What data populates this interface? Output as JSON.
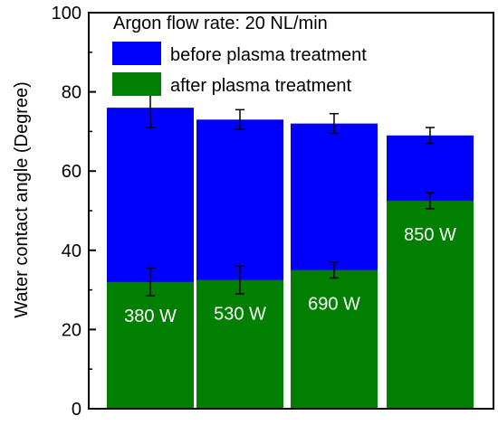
{
  "chart_data": {
    "type": "bar",
    "title": "",
    "xlabel": "",
    "ylabel": "Water contact angle (Degree)",
    "ylim": [
      0,
      100
    ],
    "yticks": [
      "0",
      "20",
      "40",
      "60",
      "80",
      "100"
    ],
    "legend_title": "Argon flow rate: 20 NL/min",
    "legend_position": "top-right",
    "grid": false,
    "categories": [
      "380 W",
      "530 W",
      "690 W",
      "850 W"
    ],
    "series": [
      {
        "name": "before plasma treatment",
        "color": "#0000ff",
        "values": [
          76,
          73,
          72,
          69
        ],
        "errors": [
          5.0,
          2.5,
          2.5,
          2.0
        ]
      },
      {
        "name": "after plasma treatment",
        "color": "#007f00",
        "values": [
          32,
          32.5,
          35,
          52.5
        ],
        "errors": [
          3.5,
          3.5,
          2.0,
          2.0
        ]
      }
    ]
  }
}
